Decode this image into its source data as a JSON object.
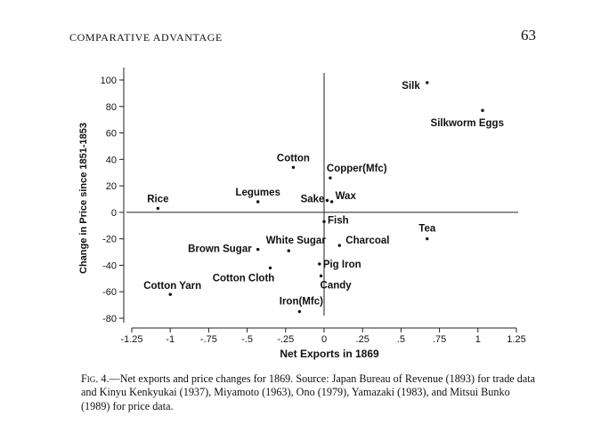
{
  "header": {
    "running_head": "COMPARATIVE ADVANTAGE",
    "page_number": "63"
  },
  "chart_data": {
    "type": "scatter",
    "xlabel": "Net Exports in 1869",
    "ylabel": "Change in Price since 1851-1853",
    "xlim": [
      -1.25,
      1.25
    ],
    "ylim": [
      -80,
      100
    ],
    "x_ticks": [
      -1.25,
      -1,
      -0.75,
      -0.5,
      -0.25,
      0,
      0.25,
      0.5,
      0.75,
      1,
      1.25
    ],
    "x_tick_labels": [
      "-1.25",
      "-1",
      "-.75",
      "-.5",
      "-.25",
      "0",
      ".25",
      ".5",
      ".75",
      "1",
      "1.25"
    ],
    "y_ticks": [
      100,
      80,
      60,
      40,
      20,
      0,
      -20,
      -40,
      -60,
      -80
    ],
    "y_tick_labels": [
      "100",
      "80",
      "60",
      "40",
      "20",
      "0",
      "-20",
      "-40",
      "-60",
      "-80"
    ],
    "reference_lines": {
      "x": 0,
      "y": 0
    },
    "grid": false,
    "points": [
      {
        "label": "Silk",
        "x": 0.67,
        "y": 98
      },
      {
        "label": "Silkworm Eggs",
        "x": 1.03,
        "y": 77
      },
      {
        "label": "Cotton",
        "x": -0.2,
        "y": 34
      },
      {
        "label": "Copper(Mfc)",
        "x": 0.04,
        "y": 26
      },
      {
        "label": "Legumes",
        "x": -0.43,
        "y": 8
      },
      {
        "label": "Sake",
        "x": 0.02,
        "y": 9
      },
      {
        "label": "Wax",
        "x": 0.05,
        "y": 8
      },
      {
        "label": "Rice",
        "x": -1.08,
        "y": 3
      },
      {
        "label": "Fish",
        "x": 0.0,
        "y": -7
      },
      {
        "label": "Tea",
        "x": 0.67,
        "y": -20
      },
      {
        "label": "White Sugar",
        "x": -0.23,
        "y": -29
      },
      {
        "label": "Charcoal",
        "x": 0.1,
        "y": -25
      },
      {
        "label": "Brown Sugar",
        "x": -0.43,
        "y": -28
      },
      {
        "label": "Pig Iron",
        "x": -0.03,
        "y": -39
      },
      {
        "label": "Cotton Cloth",
        "x": -0.35,
        "y": -42
      },
      {
        "label": "Candy",
        "x": -0.02,
        "y": -48
      },
      {
        "label": "Cotton Yarn",
        "x": -1.0,
        "y": -62
      },
      {
        "label": "Iron(Mfc)",
        "x": -0.16,
        "y": -75
      }
    ]
  },
  "caption": {
    "figure_label": "Fig. 4.",
    "text": "—Net exports and price changes for 1869. Source: Japan Bureau of Revenue (1893) for trade data and Kinyu Kenkyukai (1937), Miyamoto (1963), Ono (1979), Yamazaki (1983), and Mitsui Bunko (1989) for price data."
  }
}
